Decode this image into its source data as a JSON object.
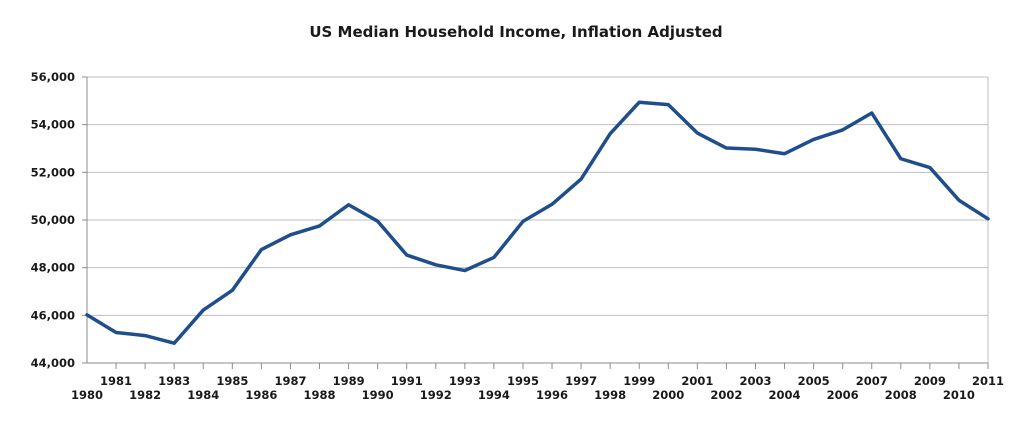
{
  "chart_data": {
    "type": "line",
    "title": "US Median Household Income, Inflation Adjusted",
    "xlabel": "",
    "ylabel": "",
    "x": [
      "1980",
      "1981",
      "1982",
      "1983",
      "1984",
      "1985",
      "1986",
      "1987",
      "1988",
      "1989",
      "1990",
      "1991",
      "1992",
      "1993",
      "1994",
      "1995",
      "1996",
      "1997",
      "1998",
      "1999",
      "2000",
      "2001",
      "2002",
      "2003",
      "2004",
      "2005",
      "2006",
      "2007",
      "2008",
      "2009",
      "2010",
      "2011"
    ],
    "series": [
      {
        "values": [
          46020,
          45280,
          45150,
          44830,
          46220,
          47050,
          48760,
          49380,
          49750,
          50640,
          49950,
          48530,
          48120,
          47880,
          48430,
          49940,
          50660,
          51720,
          53620,
          54940,
          54840,
          53650,
          53020,
          52970,
          52780,
          53380,
          53780,
          54490,
          52570,
          52200,
          50830,
          50050
        ],
        "color": "#1f4e8c"
      }
    ],
    "ylim": [
      44000,
      56000
    ],
    "yticks": [
      "44,000",
      "46,000",
      "48,000",
      "50,000",
      "52,000",
      "54,000",
      "56,000"
    ],
    "grid": true,
    "legend": "none"
  }
}
